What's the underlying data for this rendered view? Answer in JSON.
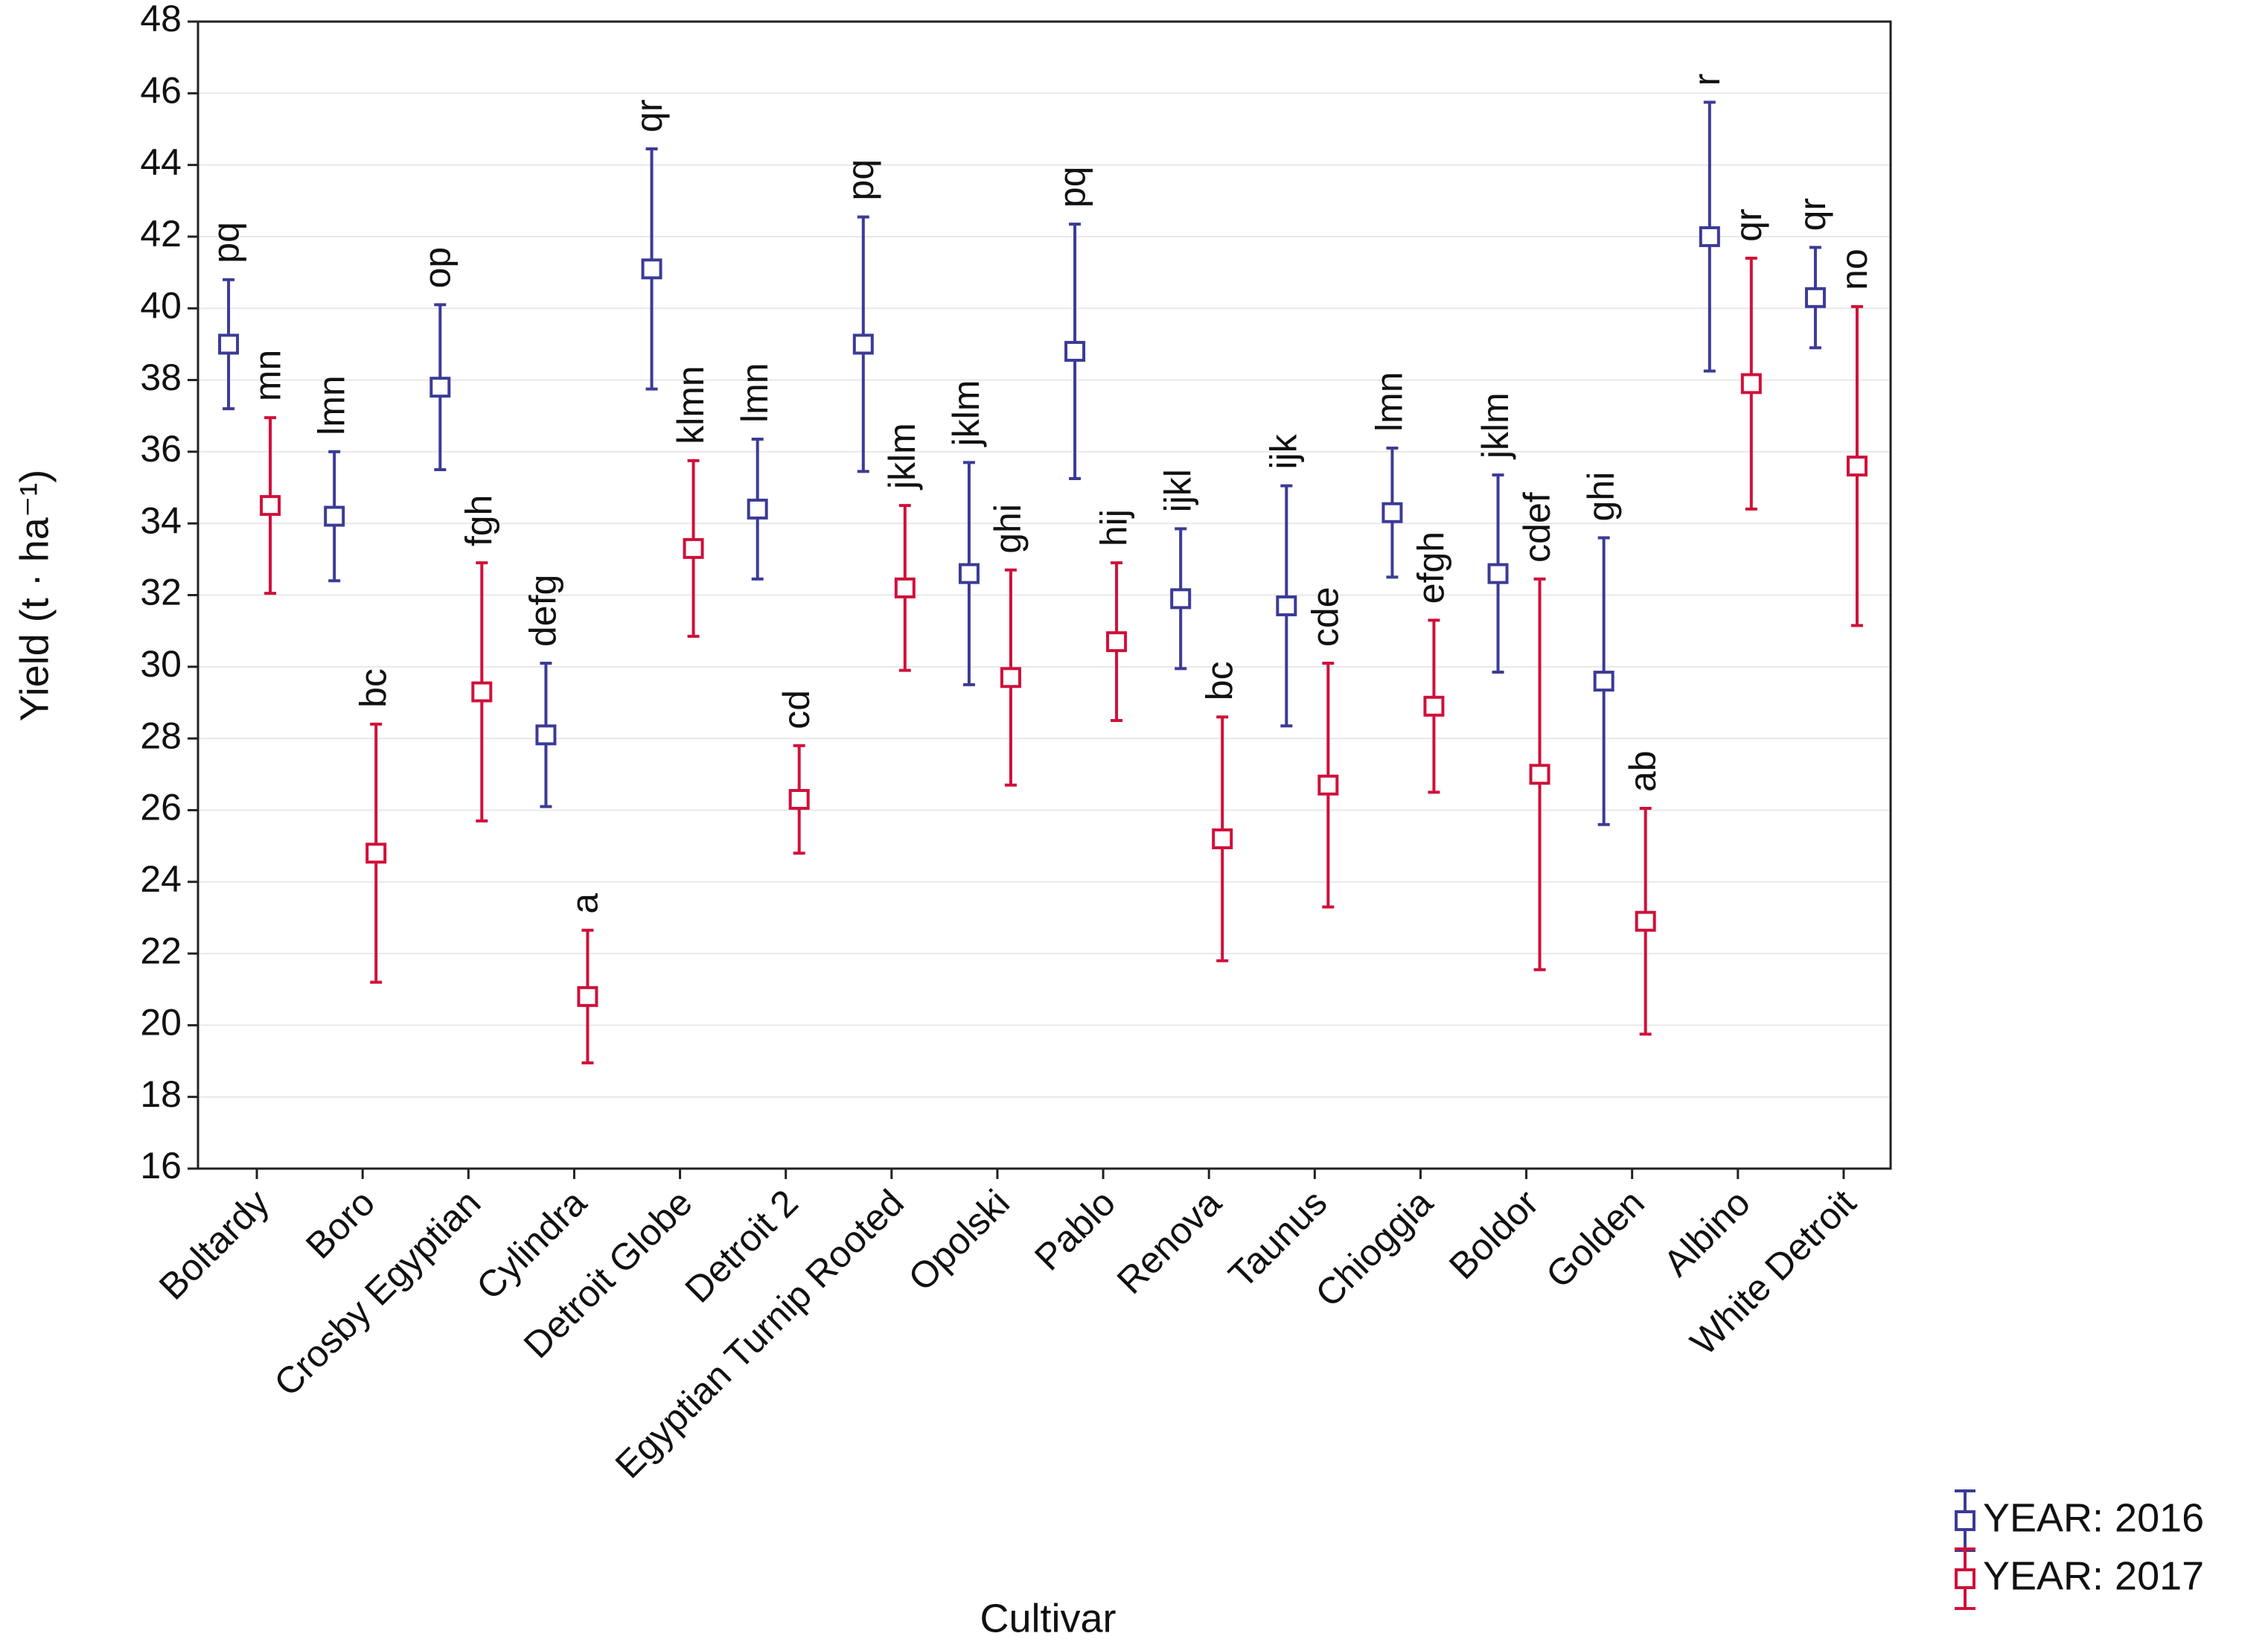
{
  "chart_data": {
    "type": "errorbar",
    "x_label": "Cultivar",
    "y_label": "Yield (t · ha⁻¹)",
    "categories": [
      "Boltardy",
      "Boro",
      "Crosby Egyptian",
      "Cylindra",
      "Detroit Globe",
      "Detroit 2",
      "Egyptian Turnip Rooted",
      "Opolski",
      "Pablo",
      "Renova",
      "Taunus",
      "Chioggia",
      "Boldor",
      "Golden",
      "Albino",
      "White Detroit"
    ],
    "series": [
      {
        "name": "YEAR: 2016",
        "color": "#3b3b96",
        "values": [
          39.0,
          34.2,
          37.8,
          28.1,
          41.1,
          34.4,
          39.0,
          32.6,
          38.8,
          31.9,
          31.7,
          34.3,
          32.6,
          29.6,
          42.0,
          40.3
        ],
        "errors": [
          1.8,
          1.8,
          2.3,
          2.0,
          3.35,
          1.95,
          3.55,
          3.1,
          3.55,
          1.95,
          3.35,
          1.8,
          2.75,
          4.0,
          3.75,
          1.4
        ],
        "letters": [
          "pq",
          "lmn",
          "op",
          "defg",
          "qr",
          "lmn",
          "pq",
          "jklm",
          "pq",
          "ijkl",
          "ijk",
          "lmn",
          "jklm",
          "ghi",
          "r",
          "qr"
        ]
      },
      {
        "name": "YEAR: 2017",
        "color": "#d0103a",
        "values": [
          34.5,
          24.8,
          29.3,
          20.8,
          33.3,
          26.3,
          32.2,
          29.7,
          30.7,
          25.2,
          26.7,
          28.9,
          27.0,
          22.9,
          37.9,
          35.6
        ],
        "errors": [
          2.45,
          3.6,
          3.6,
          1.85,
          2.45,
          1.5,
          2.3,
          3.0,
          2.2,
          3.4,
          3.4,
          2.4,
          5.45,
          3.15,
          3.5,
          4.45
        ],
        "letters": [
          "mn",
          "bc",
          "fgh",
          "a",
          "klmn",
          "cd",
          "jklm",
          "ghi",
          "hij",
          "bc",
          "cde",
          "efgh",
          "cdef",
          "ab",
          "qr",
          "no"
        ]
      }
    ],
    "ylim": [
      16,
      48
    ],
    "yticks": [
      16,
      18,
      20,
      22,
      24,
      26,
      28,
      30,
      32,
      34,
      36,
      38,
      40,
      42,
      44,
      46,
      48
    ],
    "grid": true,
    "legend": "bottom-right"
  }
}
